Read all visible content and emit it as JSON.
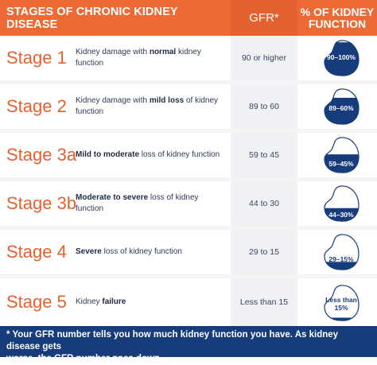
{
  "header": {
    "stages_title": "STAGES OF CHRONIC KIDNEY DISEASE",
    "gfr_title": "GFR*",
    "pct_title_line1": "% OF KIDNEY",
    "pct_title_line2": "FUNCTION"
  },
  "rows": [
    {
      "stage": "Stage 1",
      "desc_pre": "Kidney damage with ",
      "desc_bold": "normal",
      "desc_post": " kidney function",
      "gfr": "90 or higher",
      "pct": "90–100%",
      "fill": 0.95
    },
    {
      "stage": "Stage 2",
      "desc_pre": "Kidney damage with ",
      "desc_bold": "mild loss",
      "desc_post": " of kidney function",
      "gfr": "89 to 60",
      "pct": "89–60%",
      "fill": 0.75
    },
    {
      "stage": "Stage 3a",
      "desc_pre": "",
      "desc_bold": "Mild to moderate",
      "desc_post": " loss of kidney function",
      "gfr": "59 to 45",
      "pct": "59–45%",
      "fill": 0.52
    },
    {
      "stage": "Stage 3b",
      "desc_pre": "",
      "desc_bold": "Moderate to severe",
      "desc_post": " loss of kidney function",
      "gfr": "44 to 30",
      "pct": "44–30%",
      "fill": 0.37
    },
    {
      "stage": "Stage 4",
      "desc_pre": "",
      "desc_bold": "Severe",
      "desc_post": " loss of kidney function",
      "gfr": "29 to 15",
      "pct": "29–15%",
      "fill": 0.22
    },
    {
      "stage": "Stage 5",
      "desc_pre": "Kidney ",
      "desc_bold": "failure",
      "desc_post": "",
      "gfr": "Less than 15",
      "pct_line1": "Less than",
      "pct_line2": "15%",
      "fill": 0.08
    }
  ],
  "footer": {
    "line1": "* Your GFR number tells you how much kidney function you have. As kidney disease gets",
    "line2": "worse, the GFR number goes down."
  },
  "colors": {
    "orange": "#ee6a35",
    "navy": "#173c7b",
    "stage_text": "#e8612d"
  }
}
